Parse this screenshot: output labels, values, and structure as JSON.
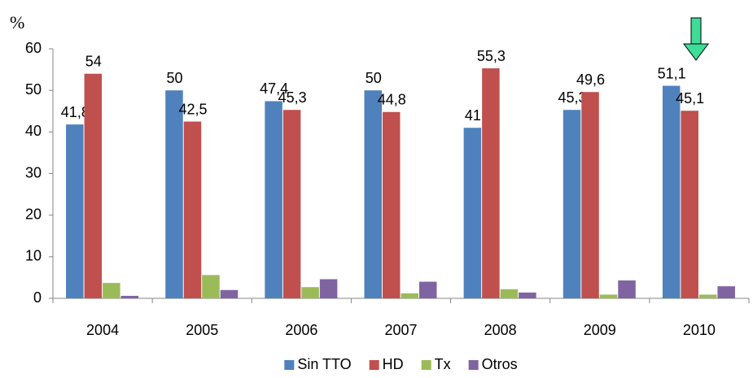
{
  "chart_data": {
    "type": "bar",
    "y_label": "%",
    "categories": [
      "2004",
      "2005",
      "2006",
      "2007",
      "2008",
      "2009",
      "2010"
    ],
    "series": [
      {
        "name": "Sin TTO",
        "color": "#4f81bd",
        "values": [
          41.8,
          50,
          47.4,
          50,
          41,
          45.3,
          51.1
        ],
        "value_labels": [
          "41,8",
          "50",
          "47,4",
          "50",
          "41",
          "45,3",
          "51,1"
        ]
      },
      {
        "name": "HD",
        "color": "#c0504d",
        "values": [
          54,
          42.5,
          45.3,
          44.8,
          55.3,
          49.6,
          45.1
        ],
        "value_labels": [
          "54",
          "42,5",
          "45,3",
          "44,8",
          "55,3",
          "49,6",
          "45,1"
        ]
      },
      {
        "name": "Tx",
        "color": "#9bbb59",
        "values": [
          3.7,
          5.6,
          2.7,
          1.2,
          2.2,
          0.9,
          0.9
        ]
      },
      {
        "name": "Otros",
        "color": "#8064a2",
        "values": [
          0.6,
          2,
          4.6,
          4,
          1.4,
          4.3,
          2.9
        ]
      }
    ],
    "ylim": [
      0,
      60
    ],
    "yticks": [
      0,
      10,
      20,
      30,
      40,
      50,
      60
    ],
    "grid": false,
    "legend": "bottom"
  }
}
